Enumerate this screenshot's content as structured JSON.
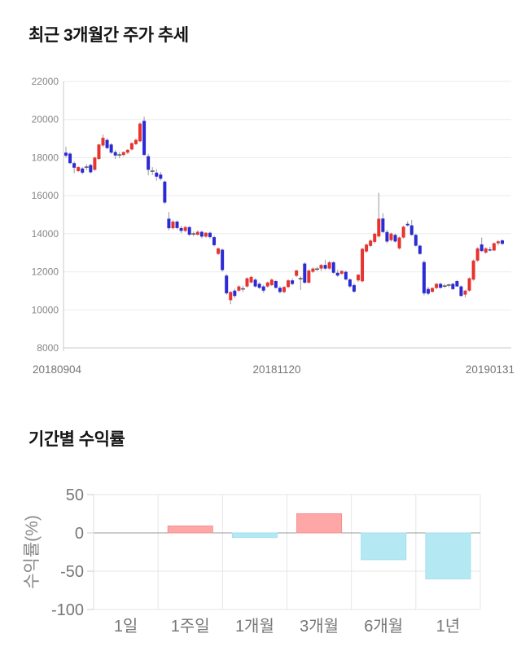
{
  "page": {
    "background": "#ffffff"
  },
  "chart_data": [
    {
      "type": "candlestick",
      "title": "최근 3개월간 주가 추세",
      "y_ticks": [
        22000,
        20000,
        18000,
        16000,
        14000,
        12000,
        10000,
        8000
      ],
      "ylim": [
        8000,
        22000
      ],
      "x_tick_labels": [
        "20180904",
        "20181120",
        "20190131"
      ],
      "legend": "none",
      "grid": "horizontal",
      "colors": {
        "up": "#e8332e",
        "down": "#2b2bd5",
        "doji": "#555555",
        "wick": "#999999",
        "grid": "#ebebeb",
        "axis": "#c9c9c9",
        "tick_text": "#868686",
        "x_label_text": "#767676"
      },
      "candles_ohlc": [
        [
          18260,
          18570,
          18000,
          18100
        ],
        [
          18210,
          18280,
          17650,
          17710
        ],
        [
          17710,
          17800,
          17180,
          17470
        ],
        [
          17290,
          17550,
          17230,
          17500
        ],
        [
          17430,
          17500,
          17120,
          17210
        ],
        [
          17500,
          17650,
          17330,
          17500
        ],
        [
          17610,
          17680,
          17160,
          17230
        ],
        [
          17360,
          18050,
          17300,
          18000
        ],
        [
          17930,
          18720,
          17880,
          18690
        ],
        [
          18640,
          19210,
          18550,
          19040
        ],
        [
          18930,
          19020,
          18440,
          18500
        ],
        [
          18690,
          18760,
          18200,
          18260
        ],
        [
          18290,
          18400,
          17930,
          18110
        ],
        [
          18140,
          18280,
          17960,
          18140
        ],
        [
          18140,
          18330,
          18060,
          18290
        ],
        [
          18260,
          18450,
          18190,
          18410
        ],
        [
          18430,
          18800,
          18380,
          18760
        ],
        [
          18710,
          19000,
          18650,
          18930
        ],
        [
          18860,
          19850,
          18800,
          19790
        ],
        [
          19930,
          20150,
          18100,
          18140
        ],
        [
          18070,
          18200,
          17070,
          17360
        ],
        [
          17290,
          17500,
          17080,
          17290
        ],
        [
          17210,
          17400,
          16790,
          17000
        ],
        [
          17110,
          17250,
          16800,
          16890
        ],
        [
          16740,
          16800,
          15560,
          15640
        ],
        [
          14790,
          15140,
          14180,
          14290
        ],
        [
          14290,
          14700,
          14230,
          14640
        ],
        [
          14640,
          14700,
          14230,
          14300
        ],
        [
          14300,
          14420,
          14030,
          14150
        ],
        [
          14150,
          14420,
          14080,
          14350
        ],
        [
          14350,
          14400,
          13880,
          13950
        ],
        [
          13990,
          14120,
          13860,
          13990
        ],
        [
          13950,
          14180,
          13890,
          14100
        ],
        [
          14100,
          14160,
          13760,
          13850
        ],
        [
          13850,
          14080,
          13790,
          14050
        ],
        [
          14050,
          14110,
          13740,
          13820
        ],
        [
          13820,
          13900,
          13330,
          13400
        ],
        [
          12940,
          13280,
          12890,
          13230
        ],
        [
          13160,
          13220,
          12010,
          12090
        ],
        [
          11800,
          11890,
          10790,
          10870
        ],
        [
          10510,
          10990,
          10300,
          10940
        ],
        [
          11010,
          11120,
          10610,
          10730
        ],
        [
          11010,
          11290,
          10950,
          11230
        ],
        [
          11100,
          11260,
          10940,
          11100
        ],
        [
          11230,
          11710,
          11170,
          11660
        ],
        [
          11440,
          11790,
          11390,
          11730
        ],
        [
          11590,
          11660,
          11170,
          11230
        ],
        [
          11370,
          11450,
          11090,
          11160
        ],
        [
          11230,
          11310,
          10890,
          11010
        ],
        [
          11230,
          11490,
          11170,
          11440
        ],
        [
          11300,
          11650,
          11250,
          11590
        ],
        [
          11510,
          11570,
          11110,
          11160
        ],
        [
          11160,
          11240,
          10860,
          10940
        ],
        [
          10940,
          11260,
          10870,
          11200
        ],
        [
          11200,
          11610,
          11140,
          11550
        ],
        [
          11550,
          11660,
          11290,
          11360
        ],
        [
          11790,
          12110,
          11730,
          12070
        ],
        [
          11640,
          11760,
          11040,
          11640
        ],
        [
          12430,
          12500,
          11370,
          11430
        ],
        [
          11430,
          12110,
          11390,
          12070
        ],
        [
          12000,
          12230,
          11940,
          12170
        ],
        [
          12140,
          12260,
          12040,
          12140
        ],
        [
          12170,
          12410,
          12040,
          12360
        ],
        [
          12360,
          12630,
          12090,
          12170
        ],
        [
          12170,
          12580,
          12110,
          12500
        ],
        [
          12500,
          12560,
          11890,
          11950
        ],
        [
          11950,
          12110,
          11740,
          11800
        ],
        [
          11900,
          12070,
          11840,
          12050
        ],
        [
          12000,
          12060,
          11540,
          11600
        ],
        [
          11600,
          11660,
          11140,
          11230
        ],
        [
          11300,
          11390,
          10890,
          10960
        ],
        [
          11550,
          11880,
          11470,
          11850
        ],
        [
          11500,
          13260,
          11440,
          13210
        ],
        [
          13070,
          13490,
          12990,
          13430
        ],
        [
          13360,
          13710,
          13290,
          13640
        ],
        [
          13570,
          14060,
          13490,
          14000
        ],
        [
          13860,
          16150,
          13790,
          14790
        ],
        [
          14800,
          15080,
          14040,
          14090
        ],
        [
          14090,
          14200,
          13490,
          13590
        ],
        [
          13660,
          14060,
          13590,
          14010
        ],
        [
          13940,
          14010,
          13540,
          13590
        ],
        [
          13230,
          13860,
          13170,
          13800
        ],
        [
          13800,
          14430,
          13740,
          14370
        ],
        [
          14520,
          14660,
          14380,
          14440
        ],
        [
          14440,
          14730,
          13890,
          13940
        ],
        [
          13940,
          14010,
          13320,
          13370
        ],
        [
          13370,
          13430,
          12890,
          12940
        ],
        [
          12510,
          12610,
          10760,
          10870
        ],
        [
          11100,
          11210,
          10770,
          10850
        ],
        [
          10950,
          11190,
          10890,
          11150
        ],
        [
          11150,
          11410,
          11090,
          11370
        ],
        [
          11370,
          11430,
          11110,
          11160
        ],
        [
          11250,
          11360,
          11140,
          11250
        ],
        [
          11300,
          11390,
          11190,
          11300
        ],
        [
          11370,
          11410,
          11050,
          11090
        ],
        [
          11510,
          11570,
          11210,
          11230
        ],
        [
          11230,
          11290,
          10690,
          10730
        ],
        [
          10800,
          11050,
          10650,
          11010
        ],
        [
          11010,
          11710,
          10950,
          11660
        ],
        [
          11590,
          12650,
          11530,
          12590
        ],
        [
          12590,
          13290,
          12520,
          13230
        ],
        [
          13440,
          13800,
          13040,
          13090
        ],
        [
          13010,
          13290,
          12950,
          13230
        ],
        [
          13180,
          13310,
          13070,
          13120
        ],
        [
          13120,
          13540,
          13090,
          13500
        ],
        [
          13500,
          13660,
          13390,
          13600
        ],
        [
          13650,
          13710,
          13410,
          13470
        ]
      ]
    },
    {
      "type": "bar",
      "title": "기간별 수익률",
      "ylabel": "수익률(%)",
      "categories": [
        "1일",
        "1주일",
        "1개월",
        "3개월",
        "6개월",
        "1년"
      ],
      "values": [
        0,
        9,
        -6,
        25,
        -35,
        -60
      ],
      "yticks": [
        50,
        0,
        -50,
        -100
      ],
      "ylim": [
        -100,
        50
      ],
      "legend": "none",
      "grid": "both",
      "colors": {
        "positive": "#ffa7a7",
        "positive_border": "#f09090",
        "negative": "#b4e9f4",
        "negative_border": "#9fdff0",
        "zero_line": "#9a9a9a",
        "grid": "#e6e6e6",
        "tick_text": "#777777",
        "axis_label_text": "#888888"
      }
    }
  ]
}
